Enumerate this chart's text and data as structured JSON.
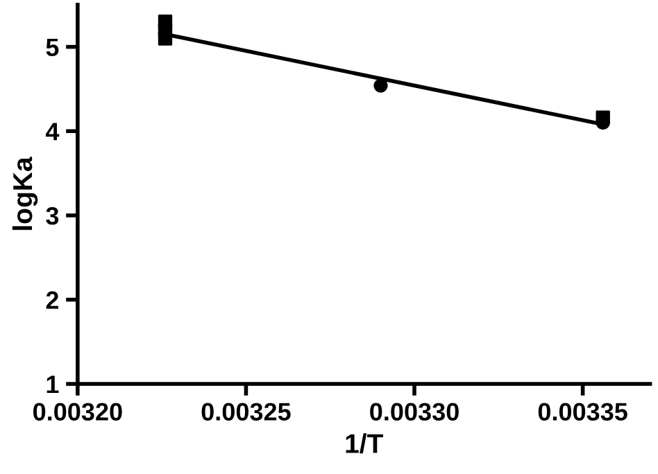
{
  "chart_data": {
    "type": "scatter",
    "xlabel": "1/T",
    "ylabel": "logKa",
    "xlim": [
      0.0032,
      0.00337
    ],
    "ylim": [
      1,
      5.5
    ],
    "xticks": [
      {
        "value": 0.0032,
        "label": "0.00320"
      },
      {
        "value": 0.00325,
        "label": "0.00325"
      },
      {
        "value": 0.0033,
        "label": "0.00330"
      },
      {
        "value": 0.00335,
        "label": "0.00335"
      }
    ],
    "yticks": [
      1,
      2,
      3,
      4,
      5
    ],
    "grid": false,
    "legend": false,
    "series": [
      {
        "marker": "square",
        "color": "#000000",
        "x": [
          0.003226,
          0.003226,
          0.003226,
          0.003356
        ],
        "values": [
          5.3,
          5.2,
          5.1,
          4.16
        ]
      },
      {
        "marker": "circle",
        "color": "#000000",
        "x": [
          0.00329,
          0.003356
        ],
        "values": [
          4.54,
          4.1
        ]
      },
      {
        "type": "line",
        "marker": "none",
        "color": "#000000",
        "x": [
          0.003226,
          0.003356
        ],
        "values": [
          5.15,
          4.08
        ]
      }
    ]
  }
}
